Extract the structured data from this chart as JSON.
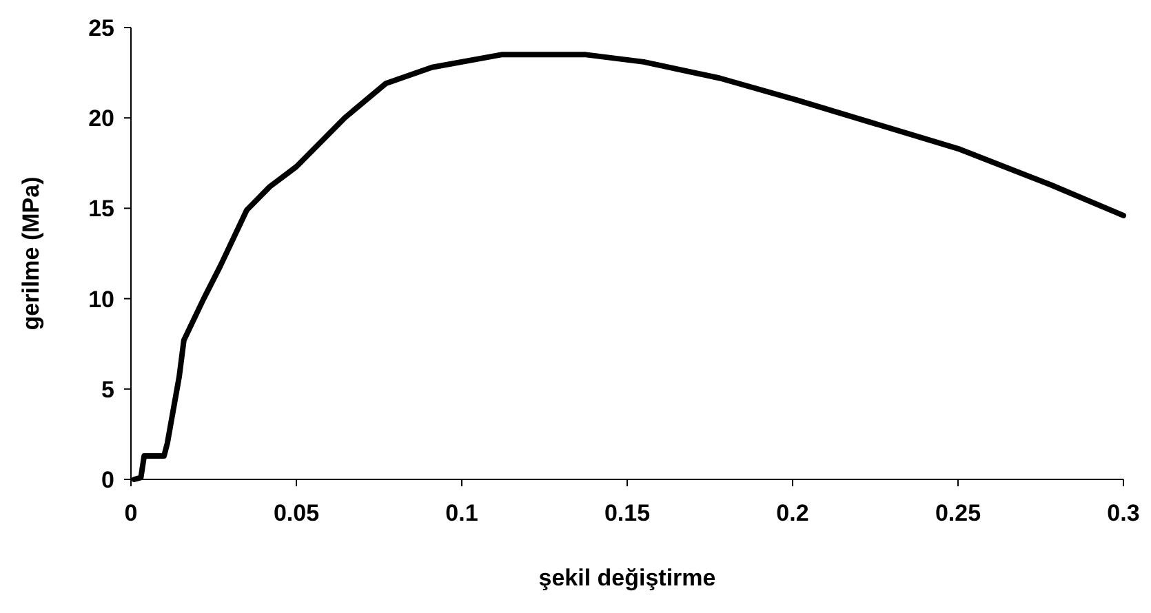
{
  "chart_data": {
    "type": "line",
    "xlabel": "şekil değiştirme",
    "ylabel": "gerilme (MPa)",
    "xlim": [
      0,
      0.3
    ],
    "ylim": [
      0,
      25
    ],
    "xticks": [
      0,
      0.05,
      0.1,
      0.15,
      0.2,
      0.25,
      0.3
    ],
    "yticks": [
      0,
      5,
      10,
      15,
      20,
      25
    ],
    "grid": false,
    "marker": "none",
    "line_style": "solid",
    "series": [
      {
        "color": "#000000",
        "x": [
          0.001,
          0.003,
          0.004,
          0.01,
          0.011,
          0.0146,
          0.016,
          0.022,
          0.027,
          0.035,
          0.042,
          0.05,
          0.0646,
          0.077,
          0.091,
          0.112,
          0.1375,
          0.155,
          0.178,
          0.201,
          0.221,
          0.25,
          0.278,
          0.3
        ],
        "values": [
          0,
          0.1,
          1.3,
          1.3,
          2,
          5.7,
          7.7,
          10,
          11.8,
          14.9,
          16.2,
          17.3,
          20,
          21.9,
          22.8,
          23.5,
          23.5,
          23.1,
          22.2,
          21,
          19.9,
          18.3,
          16.3,
          14.6
        ]
      }
    ]
  }
}
